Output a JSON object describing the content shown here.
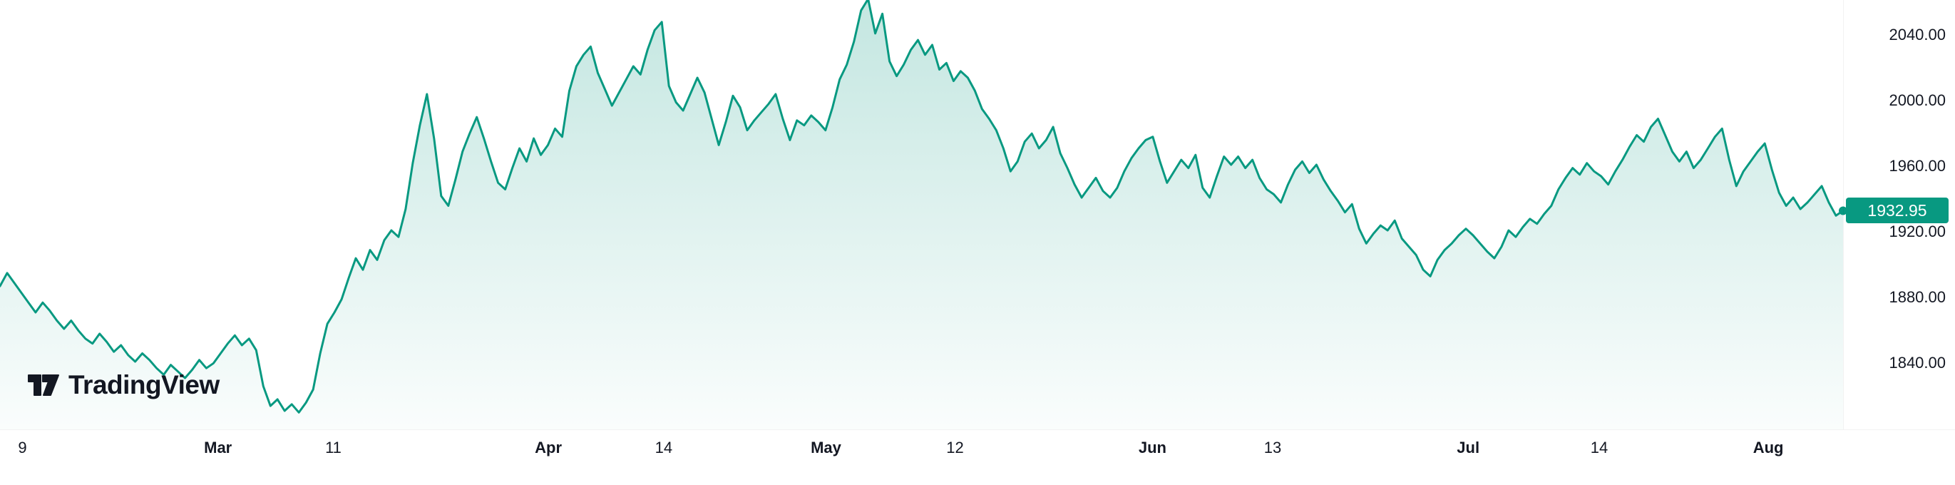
{
  "branding": {
    "logo_text": "TradingView"
  },
  "chart_data": {
    "type": "area",
    "title": "",
    "xlabel": "",
    "ylabel": "",
    "legend": "none",
    "grid": "off",
    "line_color": "#089981",
    "fill_color": "#089981",
    "axis_text_color": "#131722",
    "background_color": "#ffffff",
    "last_price": 1932.95,
    "last_price_label": "1932.95",
    "y_axis": {
      "top_value": 2061.4,
      "bottom_value": 1799.7,
      "ticks": [
        {
          "label": "2040.00",
          "value": 2040
        },
        {
          "label": "2000.00",
          "value": 2000
        },
        {
          "label": "1960.00",
          "value": 1960
        },
        {
          "label": "1920.00",
          "value": 1920
        },
        {
          "label": "1880.00",
          "value": 1880
        },
        {
          "label": "1840.00",
          "value": 1840
        }
      ]
    },
    "x_axis": {
      "labels": [
        {
          "label": "9",
          "x": 0.0115,
          "major": false
        },
        {
          "label": "Mar",
          "x": 0.1115,
          "major": true
        },
        {
          "label": "11",
          "x": 0.1705,
          "major": false
        },
        {
          "label": "Apr",
          "x": 0.2805,
          "major": true
        },
        {
          "label": "14",
          "x": 0.3395,
          "major": false
        },
        {
          "label": "May",
          "x": 0.4225,
          "major": true
        },
        {
          "label": "12",
          "x": 0.4885,
          "major": false
        },
        {
          "label": "Jun",
          "x": 0.5895,
          "major": true
        },
        {
          "label": "13",
          "x": 0.651,
          "major": false
        },
        {
          "label": "Jul",
          "x": 0.751,
          "major": true
        },
        {
          "label": "14",
          "x": 0.818,
          "major": false
        },
        {
          "label": "Aug",
          "x": 0.9045,
          "major": true
        }
      ]
    },
    "series": [
      {
        "name": "price",
        "values": [
          1887,
          1895,
          1889,
          1883,
          1877,
          1871,
          1877,
          1872,
          1866,
          1861,
          1866,
          1860,
          1855,
          1852,
          1858,
          1853,
          1847,
          1851,
          1845,
          1841,
          1846,
          1842,
          1837,
          1833,
          1839,
          1835,
          1831,
          1836,
          1842,
          1837,
          1840,
          1846,
          1852,
          1857,
          1851,
          1855,
          1848,
          1826,
          1814,
          1818,
          1811,
          1815,
          1810,
          1816,
          1824,
          1846,
          1864,
          1871,
          1879,
          1892,
          1904,
          1897,
          1909,
          1903,
          1915,
          1921,
          1917,
          1934,
          1962,
          1985,
          2004,
          1977,
          1942,
          1936,
          1952,
          1969,
          1980,
          1990,
          1977,
          1963,
          1950,
          1946,
          1959,
          1971,
          1963,
          1977,
          1967,
          1973,
          1983,
          1978,
          2006,
          2021,
          2028,
          2033,
          2017,
          2007,
          1997,
          2005,
          2013,
          2021,
          2016,
          2031,
          2043,
          2048,
          2009,
          1999,
          1994,
          2004,
          2014,
          2005,
          1989,
          1973,
          1987,
          2003,
          1996,
          1982,
          1988,
          1993,
          1998,
          2004,
          1989,
          1976,
          1988,
          1985,
          1991,
          1987,
          1982,
          1996,
          2013,
          2022,
          2036,
          2055,
          2062,
          2041,
          2053,
          2024,
          2015,
          2022,
          2031,
          2037,
          2028,
          2034,
          2019,
          2023,
          2012,
          2018,
          2014,
          2006,
          1995,
          1989,
          1982,
          1971,
          1957,
          1963,
          1975,
          1980,
          1971,
          1976,
          1984,
          1968,
          1959,
          1949,
          1941,
          1947,
          1953,
          1945,
          1941,
          1947,
          1957,
          1965,
          1971,
          1976,
          1978,
          1963,
          1950,
          1957,
          1964,
          1959,
          1967,
          1947,
          1941,
          1954,
          1966,
          1961,
          1966,
          1959,
          1964,
          1953,
          1946,
          1943,
          1938,
          1949,
          1958,
          1963,
          1956,
          1961,
          1952,
          1945,
          1939,
          1932,
          1937,
          1922,
          1913,
          1919,
          1924,
          1921,
          1927,
          1916,
          1911,
          1906,
          1897,
          1893,
          1903,
          1909,
          1913,
          1918,
          1922,
          1918,
          1913,
          1908,
          1904,
          1911,
          1921,
          1917,
          1923,
          1928,
          1925,
          1931,
          1936,
          1946,
          1953,
          1959,
          1955,
          1962,
          1957,
          1954,
          1949,
          1957,
          1964,
          1972,
          1979,
          1975,
          1984,
          1989,
          1979,
          1969,
          1963,
          1969,
          1959,
          1964,
          1971,
          1978,
          1983,
          1964,
          1948,
          1957,
          1963,
          1969,
          1974,
          1958,
          1944,
          1936,
          1941,
          1934,
          1938,
          1943,
          1948,
          1938,
          1930,
          1932.95
        ]
      }
    ]
  }
}
